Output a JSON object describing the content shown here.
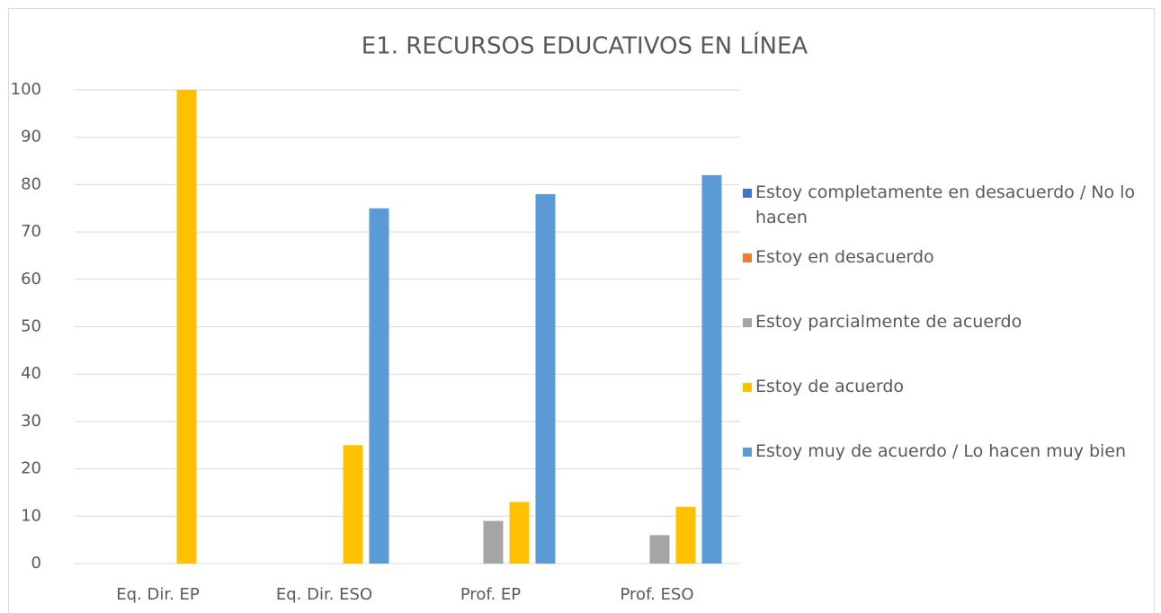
{
  "chart_data": {
    "type": "bar",
    "title": "E1. RECURSOS EDUCATIVOS EN LÍNEA",
    "categories": [
      "Eq. Dir. EP",
      "Eq. Dir. ESO",
      "Prof. EP",
      "Prof. ESO"
    ],
    "series": [
      {
        "name": "Estoy completamente en desacuerdo / No lo hacen",
        "color": "#4472c4",
        "values": [
          0,
          0,
          0,
          0
        ]
      },
      {
        "name": "Estoy en desacuerdo",
        "color": "#ed7d31",
        "values": [
          0,
          0,
          0,
          0
        ]
      },
      {
        "name": "Estoy parcialmente de acuerdo",
        "color": "#a5a5a5",
        "values": [
          0,
          0,
          9,
          6
        ]
      },
      {
        "name": "Estoy de acuerdo",
        "color": "#ffc000",
        "values": [
          100,
          25,
          13,
          12
        ]
      },
      {
        "name": "Estoy muy de acuerdo / Lo hacen muy bien",
        "color": "#5b9bd5",
        "values": [
          0,
          75,
          78,
          82
        ]
      }
    ],
    "ylim": [
      0,
      100
    ],
    "yticks": [
      0,
      10,
      20,
      30,
      40,
      50,
      60,
      70,
      80,
      90,
      100
    ],
    "grid": true,
    "legend": "right"
  }
}
